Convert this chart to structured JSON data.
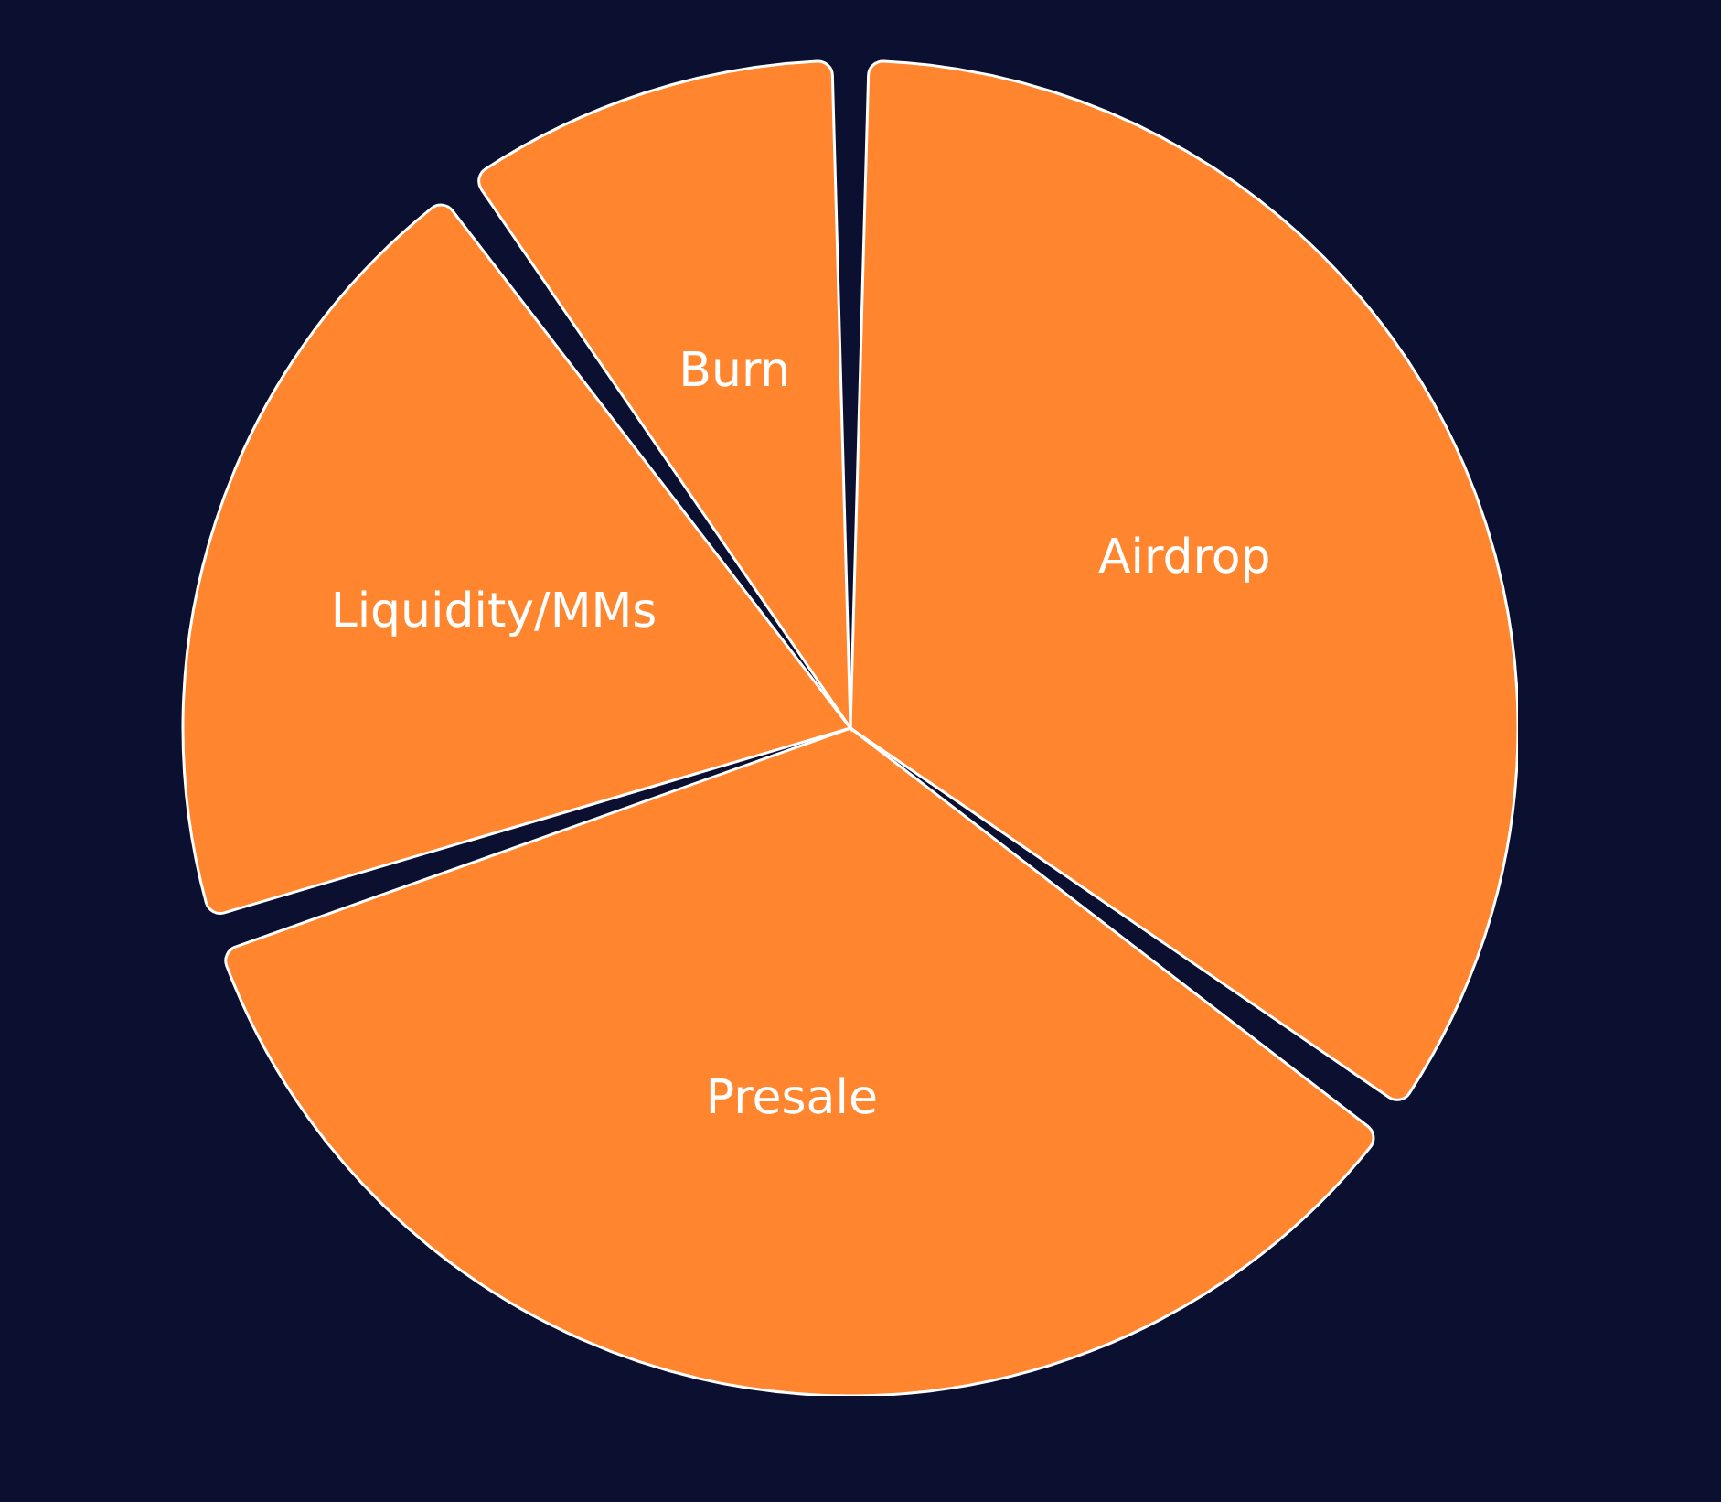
{
  "chart_data": {
    "type": "pie",
    "categories": [
      "Airdrop",
      "Presale",
      "Liquidity/MMs",
      "Burn"
    ],
    "values": [
      35,
      35,
      20,
      10
    ],
    "colors": [
      "#ff852f",
      "#ff852f",
      "#ff852f",
      "#ff852f"
    ]
  }
}
